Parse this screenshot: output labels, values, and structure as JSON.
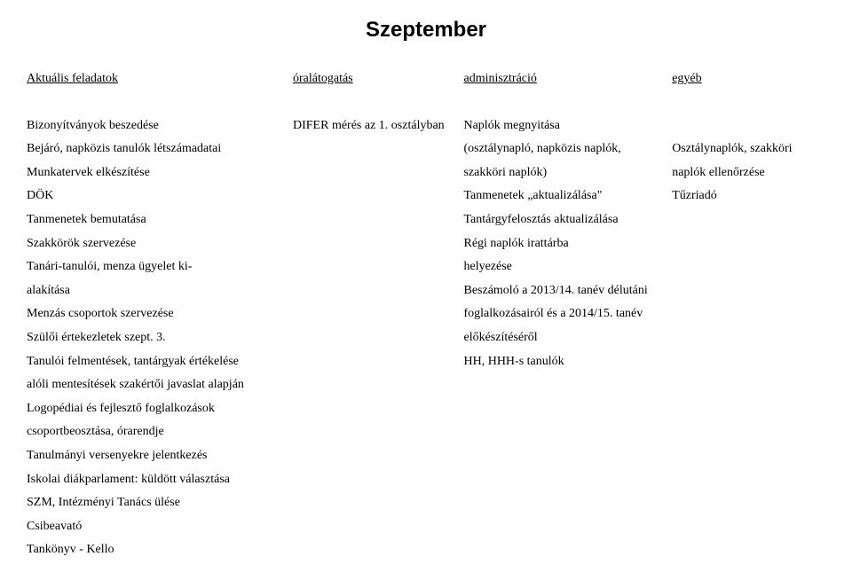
{
  "title": "Szeptember",
  "headers": {
    "col1": "Aktuális feladatok",
    "col2": "óralátogatás",
    "col3": "adminisztráció",
    "col4": "egyéb"
  },
  "col1_lines": [
    "Bizonyítványok beszedése",
    "Bejáró, napközis tanulók létszámadatai",
    "Munkatervek elkészítése",
    "DÖK",
    "Tanmenetek bemutatása",
    "Szakkörök szervezése",
    "Tanári-tanulói, menza ügyelet ki-",
    "alakítása",
    "Menzás csoportok szervezése",
    "Szülői értekezletek szept. 3.",
    "Tanulói felmentések, tantárgyak értékelése",
    "alóli mentesítések szakértői javaslat alapján",
    "Logopédiai és fejlesztő foglalkozások",
    "csoportbeosztása, órarendje",
    "Tanulmányi versenyekre jelentkezés",
    "Iskolai diákparlament: küldött választása",
    "SZM, Intézményi Tanács ülése",
    "Csibeavató",
    "Tankönyv - Kello"
  ],
  "col2_lines": [
    "DIFER mérés az 1. osztályban"
  ],
  "col3_lines": [
    "Naplók megnyitása",
    "(osztálynapló, napközis naplók,",
    "szakköri naplók)",
    "Tanmenetek „aktualizálása\"",
    "Tantárgyfelosztás aktualizálása",
    "Régi naplók irattárba",
    "helyezése",
    "Beszámoló a 2013/14. tanév délutáni",
    "foglalkozásairól és a 2014/15. tanév",
    "előkészítéséről",
    "HH, HHH-s tanulók"
  ],
  "col4_lines": [
    "",
    "Osztálynaplók, szakköri",
    "naplók ellenőrzése",
    "Tűzriadó"
  ]
}
